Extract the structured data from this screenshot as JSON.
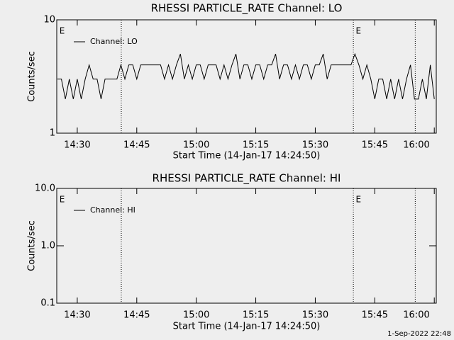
{
  "chart_data": [
    {
      "type": "line",
      "title": "RHESSI PARTICLE_RATE Channel: LO",
      "xlabel": "Start Time (14-Jan-17 14:24:50)",
      "ylabel": "Counts/sec",
      "log_y": true,
      "xlim": [
        864.83,
        960.5
      ],
      "ylim": [
        1,
        10
      ],
      "yticks": [
        1,
        10
      ],
      "xticks": [
        {
          "value": 870,
          "label": "14:30"
        },
        {
          "value": 885,
          "label": "14:45"
        },
        {
          "value": 900,
          "label": "15:00"
        },
        {
          "value": 915,
          "label": "15:15"
        },
        {
          "value": 930,
          "label": "15:30"
        },
        {
          "value": 945,
          "label": "15:45"
        },
        {
          "value": 960,
          "label": "16:00"
        }
      ],
      "vlines": [
        881.1,
        939.6,
        955.2
      ],
      "annotations": [
        {
          "text": "E",
          "x": 865.5
        },
        {
          "text": "E",
          "x": 940.2
        }
      ],
      "x": [
        865,
        866,
        867,
        868,
        869,
        870,
        871,
        872,
        873,
        874,
        875,
        876,
        877,
        878,
        879,
        880,
        881,
        882,
        883,
        884,
        885,
        886,
        887,
        888,
        889,
        890,
        891,
        892,
        893,
        894,
        895,
        896,
        897,
        898,
        899,
        900,
        901,
        902,
        903,
        904,
        905,
        906,
        907,
        908,
        909,
        910,
        911,
        912,
        913,
        914,
        915,
        916,
        917,
        918,
        919,
        920,
        921,
        922,
        923,
        924,
        925,
        926,
        927,
        928,
        929,
        930,
        931,
        932,
        933,
        934,
        935,
        936,
        937,
        938,
        939,
        940,
        941,
        942,
        943,
        944,
        945,
        946,
        947,
        948,
        949,
        950,
        951,
        952,
        953,
        954,
        955,
        956,
        957,
        958,
        959,
        960
      ],
      "series": [
        {
          "name": "Channel: LO",
          "color": "#000000",
          "values": [
            3,
            3,
            2,
            3,
            2,
            3,
            2,
            3,
            4,
            3,
            3,
            2,
            3,
            3,
            3,
            3,
            4,
            3,
            4,
            4,
            3,
            4,
            4,
            4,
            4,
            4,
            4,
            3,
            4,
            3,
            4,
            5,
            3,
            4,
            3,
            4,
            4,
            3,
            4,
            4,
            4,
            3,
            4,
            3,
            4,
            5,
            3,
            4,
            4,
            3,
            4,
            4,
            3,
            4,
            4,
            5,
            3,
            4,
            4,
            3,
            4,
            3,
            4,
            4,
            3,
            4,
            4,
            5,
            3,
            4,
            4,
            4,
            4,
            4,
            4,
            5,
            4,
            3,
            4,
            3,
            2,
            3,
            3,
            2,
            3,
            2,
            3,
            2,
            3,
            4,
            2,
            2,
            3,
            2,
            4,
            2
          ]
        }
      ]
    },
    {
      "type": "line",
      "title": "RHESSI PARTICLE_RATE Channel: HI",
      "xlabel": "Start Time (14-Jan-17 14:24:50)",
      "ylabel": "Counts/sec",
      "log_y": true,
      "xlim": [
        864.83,
        960.5
      ],
      "ylim": [
        0.1,
        10
      ],
      "yticks": [
        0.1,
        {
          "value": 1,
          "label": "1.0"
        },
        {
          "value": 10,
          "label": "10.0"
        }
      ],
      "xticks": [
        {
          "value": 870,
          "label": "14:30"
        },
        {
          "value": 885,
          "label": "14:45"
        },
        {
          "value": 900,
          "label": "15:00"
        },
        {
          "value": 915,
          "label": "15:15"
        },
        {
          "value": 930,
          "label": "15:30"
        },
        {
          "value": 945,
          "label": "15:45"
        },
        {
          "value": 960,
          "label": "16:00"
        }
      ],
      "vlines": [
        881.1,
        939.6,
        955.2
      ],
      "annotations": [
        {
          "text": "E",
          "x": 865.5
        },
        {
          "text": "E",
          "x": 940.2
        }
      ],
      "x": [],
      "series": [
        {
          "name": "Channel: HI",
          "color": "#000000",
          "values": []
        }
      ]
    }
  ],
  "footer": "1-Sep-2022 22:48"
}
